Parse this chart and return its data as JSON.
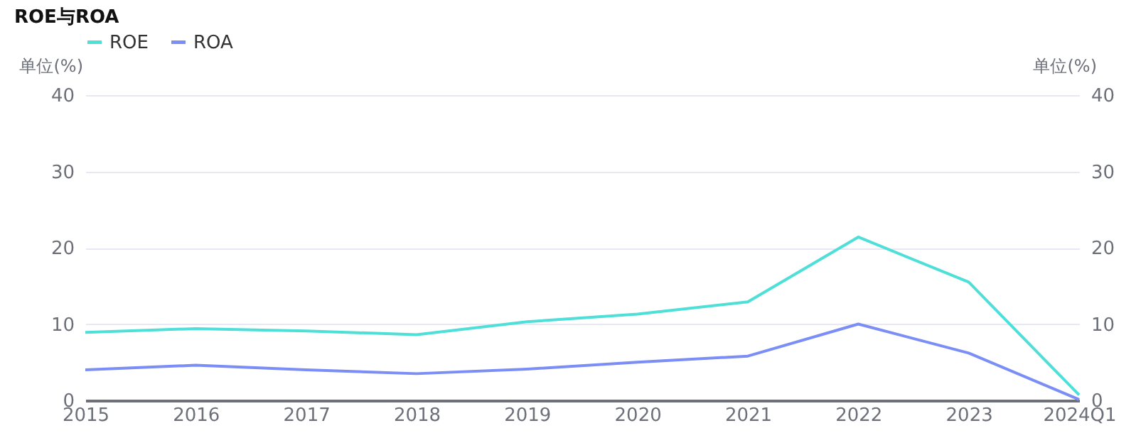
{
  "chart_data": {
    "type": "line",
    "title": "ROE与ROA",
    "ylabel": "单位(%)",
    "y2label": "单位(%)",
    "categories": [
      "2015",
      "2016",
      "2017",
      "2018",
      "2019",
      "2020",
      "2021",
      "2022",
      "2023",
      "2024Q1"
    ],
    "series": [
      {
        "name": "ROE",
        "color": "#4ee0d8",
        "values": [
          8.9,
          9.4,
          9.1,
          8.6,
          10.3,
          11.3,
          12.9,
          21.4,
          15.5,
          0.7
        ]
      },
      {
        "name": "ROA",
        "color": "#7b8ef5",
        "axis": "y2",
        "values": [
          4.0,
          4.6,
          4.0,
          3.5,
          4.1,
          5.0,
          5.8,
          10.0,
          6.2,
          0.1
        ]
      }
    ],
    "ylim": [
      0,
      40
    ],
    "yticks": [
      0,
      10,
      20,
      30,
      40
    ],
    "y2lim": [
      0,
      40
    ],
    "y2ticks": [
      0,
      10,
      20,
      30,
      40
    ],
    "grid": "y",
    "legend": "top left",
    "marker": "none",
    "line_style": "solid"
  }
}
